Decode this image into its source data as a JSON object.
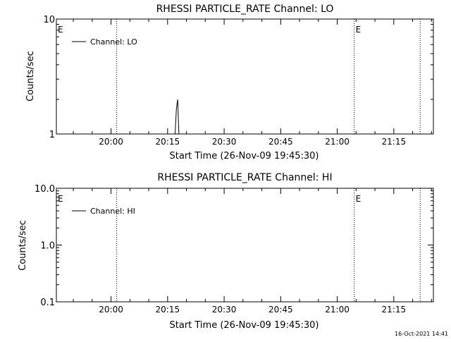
{
  "footer": {
    "timestamp": "16-Oct-2021 14:41"
  },
  "chart_data": [
    {
      "type": "line",
      "title": "RHESSI PARTICLE_RATE Channel: LO",
      "xlabel": "Start Time (26-Nov-09 19:45:30)",
      "ylabel": "Counts/sec",
      "yscale": "log",
      "ylim": [
        1,
        10
      ],
      "xlim": [
        "19:45:30",
        "21:25:30"
      ],
      "x_ticks": [
        "20:00",
        "20:15",
        "20:30",
        "20:45",
        "21:00",
        "21:15"
      ],
      "y_ticks": [
        {
          "value": 1,
          "label": "1"
        },
        {
          "value": 10,
          "label": "10"
        }
      ],
      "legend": {
        "label": "Channel: LO",
        "position": "top-left"
      },
      "event_lines": [
        "20:01:30",
        "21:04:30",
        "21:22:00"
      ],
      "event_markers": [
        {
          "label": "E",
          "time": "19:45:30"
        },
        {
          "label": "E",
          "time": "21:04:30"
        }
      ],
      "series": [
        {
          "x": [
            "20:17:00",
            "20:17:20",
            "20:17:40",
            "20:18:00"
          ],
          "y": [
            1.0,
            1.65,
            2.0,
            1.0
          ]
        }
      ]
    },
    {
      "type": "line",
      "title": "RHESSI PARTICLE_RATE Channel: HI",
      "xlabel": "Start Time (26-Nov-09 19:45:30)",
      "ylabel": "Counts/sec",
      "yscale": "log",
      "ylim": [
        0.1,
        10
      ],
      "xlim": [
        "19:45:30",
        "21:25:30"
      ],
      "x_ticks": [
        "20:00",
        "20:15",
        "20:30",
        "20:45",
        "21:00",
        "21:15"
      ],
      "y_ticks": [
        {
          "value": 0.1,
          "label": "0.1"
        },
        {
          "value": 1,
          "label": "1.0"
        },
        {
          "value": 10,
          "label": "10.0"
        }
      ],
      "legend": {
        "label": "Channel: HI",
        "position": "top-left"
      },
      "event_lines": [
        "20:01:30",
        "21:04:30",
        "21:22:00"
      ],
      "event_markers": [
        {
          "label": "E",
          "time": "19:45:30"
        },
        {
          "label": "E",
          "time": "21:04:30"
        }
      ],
      "series": []
    }
  ]
}
